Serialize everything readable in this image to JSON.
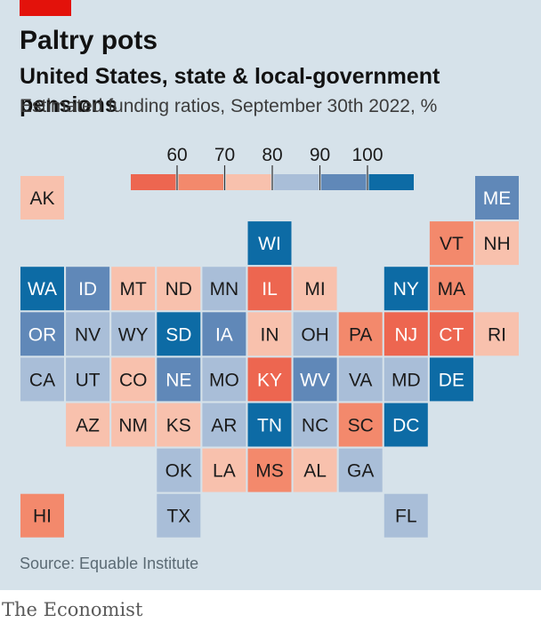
{
  "header": {
    "title": "Paltry pots",
    "subtitle": "United States, state & local-government pensions",
    "description": "Estimated funding ratios, September 30th 2022, %"
  },
  "footer": {
    "source": "Source: Equable Institute",
    "brand": "The Economist"
  },
  "chart_data": {
    "type": "tile-grid map",
    "title": "Paltry pots",
    "subtitle": "United States, state & local-government pensions",
    "value_label": "Estimated funding ratios, September 30th 2022, %",
    "legend": {
      "tick_labels": [
        "60",
        "70",
        "80",
        "90",
        "100"
      ],
      "bins": [
        {
          "range": "<60",
          "color": "#ed6650"
        },
        {
          "range": "60-70",
          "color": "#f3896c"
        },
        {
          "range": "70-80",
          "color": "#f8c1ad"
        },
        {
          "range": "80-90",
          "color": "#a9bed8"
        },
        {
          "range": "90-100",
          "color": "#6088b8"
        },
        {
          "range": ">100",
          "color": "#0d6ba5"
        }
      ]
    },
    "grid": [
      {
        "state": "AK",
        "row": 0,
        "col": 0,
        "bin": 2
      },
      {
        "state": "ME",
        "row": 0,
        "col": 10,
        "bin": 4
      },
      {
        "state": "WI",
        "row": 1,
        "col": 5,
        "bin": 5
      },
      {
        "state": "VT",
        "row": 1,
        "col": 9,
        "bin": 1
      },
      {
        "state": "NH",
        "row": 1,
        "col": 10,
        "bin": 2
      },
      {
        "state": "WA",
        "row": 2,
        "col": 0,
        "bin": 5
      },
      {
        "state": "ID",
        "row": 2,
        "col": 1,
        "bin": 4
      },
      {
        "state": "MT",
        "row": 2,
        "col": 2,
        "bin": 2
      },
      {
        "state": "ND",
        "row": 2,
        "col": 3,
        "bin": 2
      },
      {
        "state": "MN",
        "row": 2,
        "col": 4,
        "bin": 3
      },
      {
        "state": "IL",
        "row": 2,
        "col": 5,
        "bin": 0
      },
      {
        "state": "MI",
        "row": 2,
        "col": 6,
        "bin": 2
      },
      {
        "state": "NY",
        "row": 2,
        "col": 8,
        "bin": 5
      },
      {
        "state": "MA",
        "row": 2,
        "col": 9,
        "bin": 1
      },
      {
        "state": "OR",
        "row": 3,
        "col": 0,
        "bin": 4
      },
      {
        "state": "NV",
        "row": 3,
        "col": 1,
        "bin": 3
      },
      {
        "state": "WY",
        "row": 3,
        "col": 2,
        "bin": 3
      },
      {
        "state": "SD",
        "row": 3,
        "col": 3,
        "bin": 5
      },
      {
        "state": "IA",
        "row": 3,
        "col": 4,
        "bin": 4
      },
      {
        "state": "IN",
        "row": 3,
        "col": 5,
        "bin": 2
      },
      {
        "state": "OH",
        "row": 3,
        "col": 6,
        "bin": 3
      },
      {
        "state": "PA",
        "row": 3,
        "col": 7,
        "bin": 1
      },
      {
        "state": "NJ",
        "row": 3,
        "col": 8,
        "bin": 0
      },
      {
        "state": "CT",
        "row": 3,
        "col": 9,
        "bin": 0
      },
      {
        "state": "RI",
        "row": 3,
        "col": 10,
        "bin": 2
      },
      {
        "state": "CA",
        "row": 4,
        "col": 0,
        "bin": 3
      },
      {
        "state": "UT",
        "row": 4,
        "col": 1,
        "bin": 3
      },
      {
        "state": "CO",
        "row": 4,
        "col": 2,
        "bin": 2
      },
      {
        "state": "NE",
        "row": 4,
        "col": 3,
        "bin": 4
      },
      {
        "state": "MO",
        "row": 4,
        "col": 4,
        "bin": 3
      },
      {
        "state": "KY",
        "row": 4,
        "col": 5,
        "bin": 0
      },
      {
        "state": "WV",
        "row": 4,
        "col": 6,
        "bin": 4
      },
      {
        "state": "VA",
        "row": 4,
        "col": 7,
        "bin": 3
      },
      {
        "state": "MD",
        "row": 4,
        "col": 8,
        "bin": 3
      },
      {
        "state": "DE",
        "row": 4,
        "col": 9,
        "bin": 5
      },
      {
        "state": "AZ",
        "row": 5,
        "col": 1,
        "bin": 2
      },
      {
        "state": "NM",
        "row": 5,
        "col": 2,
        "bin": 2
      },
      {
        "state": "KS",
        "row": 5,
        "col": 3,
        "bin": 2
      },
      {
        "state": "AR",
        "row": 5,
        "col": 4,
        "bin": 3
      },
      {
        "state": "TN",
        "row": 5,
        "col": 5,
        "bin": 5
      },
      {
        "state": "NC",
        "row": 5,
        "col": 6,
        "bin": 3
      },
      {
        "state": "SC",
        "row": 5,
        "col": 7,
        "bin": 1
      },
      {
        "state": "DC",
        "row": 5,
        "col": 8,
        "bin": 5
      },
      {
        "state": "OK",
        "row": 6,
        "col": 3,
        "bin": 3
      },
      {
        "state": "LA",
        "row": 6,
        "col": 4,
        "bin": 2
      },
      {
        "state": "MS",
        "row": 6,
        "col": 5,
        "bin": 1
      },
      {
        "state": "AL",
        "row": 6,
        "col": 6,
        "bin": 2
      },
      {
        "state": "GA",
        "row": 6,
        "col": 7,
        "bin": 3
      },
      {
        "state": "HI",
        "row": 7,
        "col": 0,
        "bin": 1
      },
      {
        "state": "TX",
        "row": 7,
        "col": 3,
        "bin": 3
      },
      {
        "state": "FL",
        "row": 7,
        "col": 8,
        "bin": 3
      }
    ],
    "text_colors": {
      "dark": "#1b1b1b",
      "light": "#ffffff"
    }
  }
}
